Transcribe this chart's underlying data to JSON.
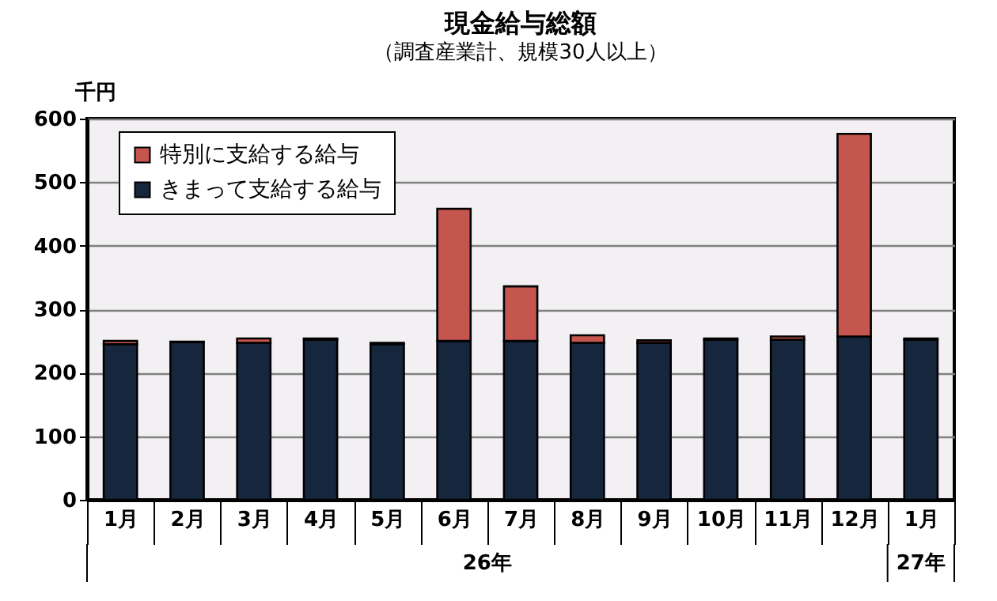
{
  "chart_data": {
    "type": "bar",
    "stacked": true,
    "title": "現金給与総額",
    "subtitle": "（調査産業計、規模30人以上）",
    "ylabel": "千円",
    "categories": [
      "1月",
      "2月",
      "3月",
      "4月",
      "5月",
      "6月",
      "7月",
      "8月",
      "9月",
      "10月",
      "11月",
      "12月",
      "1月"
    ],
    "series": [
      {
        "name": "きまって支給する給与",
        "color": "#16273d",
        "values": [
          245,
          248,
          247,
          252,
          245,
          250,
          250,
          247,
          247,
          252,
          252,
          257,
          252
        ]
      },
      {
        "name": "特別に支給する給与",
        "color": "#c5554f",
        "values": [
          5,
          1,
          7,
          2,
          2,
          208,
          86,
          12,
          4,
          2,
          5,
          319,
          2
        ]
      }
    ],
    "ylim": [
      0,
      600
    ],
    "yticks": [
      0,
      100,
      200,
      300,
      400,
      500,
      600
    ],
    "grid": "y",
    "legend": "top left",
    "annotations": [
      "26年",
      "27年"
    ]
  }
}
